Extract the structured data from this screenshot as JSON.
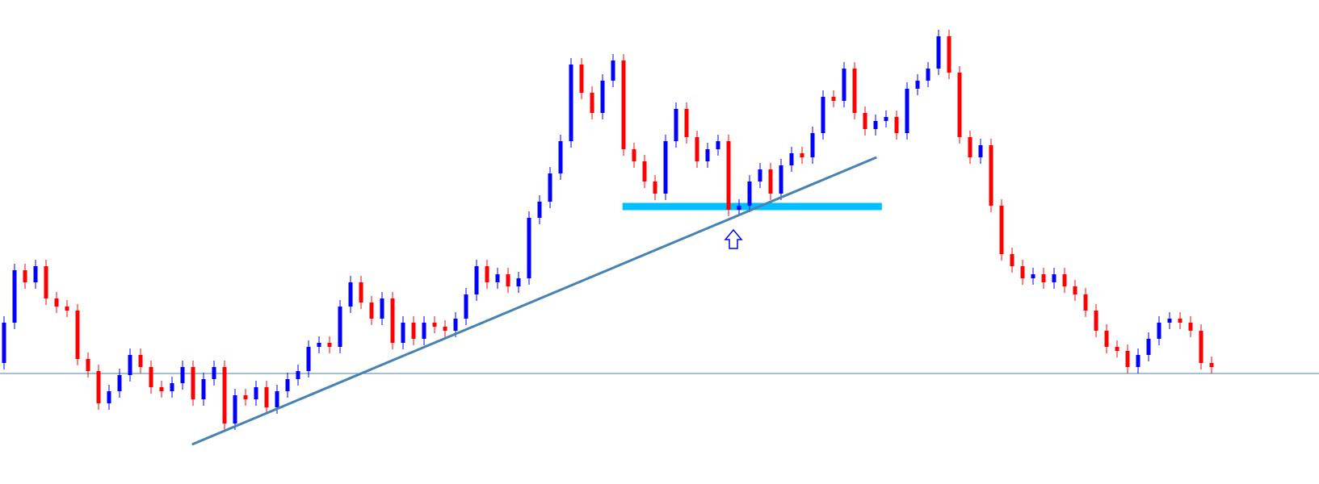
{
  "chart_data": {
    "type": "candlestick",
    "up_color": "#0000ff",
    "down_color": "#ff0000",
    "ylim": [
      0,
      600
    ],
    "open": [
      150,
      200,
      265,
      250,
      270,
      230,
      220,
      215,
      155,
      140,
      100,
      115,
      135,
      160,
      145,
      120,
      115,
      125,
      145,
      105,
      130,
      145,
      75,
      110,
      105,
      120,
      95,
      115,
      130,
      140,
      170,
      175,
      170,
      220,
      250,
      225,
      205,
      230,
      175,
      200,
      180,
      200,
      195,
      190,
      205,
      235,
      270,
      250,
      260,
      245,
      255,
      330,
      350,
      385,
      425,
      520,
      485,
      460,
      500,
      525,
      415,
      400,
      375,
      360,
      425,
      465,
      430,
      400,
      415,
      425,
      340,
      345,
      375,
      390,
      360,
      395,
      410,
      405,
      435,
      480,
      475,
      515,
      460,
      440,
      450,
      455,
      435,
      490,
      500,
      515,
      555,
      510,
      430,
      405,
      420,
      345,
      285,
      270,
      255,
      260,
      250,
      260,
      245,
      235,
      215,
      190,
      170,
      165,
      145,
      160,
      180,
      200,
      205,
      200,
      190,
      150
    ],
    "high": [
      208,
      273,
      273,
      278,
      278,
      238,
      228,
      223,
      163,
      148,
      123,
      143,
      168,
      168,
      153,
      128,
      133,
      153,
      153,
      138,
      153,
      153,
      118,
      118,
      128,
      128,
      123,
      138,
      148,
      178,
      183,
      183,
      228,
      258,
      258,
      233,
      238,
      238,
      208,
      208,
      208,
      208,
      203,
      213,
      243,
      278,
      278,
      268,
      268,
      263,
      338,
      358,
      393,
      433,
      528,
      528,
      493,
      508,
      533,
      533,
      423,
      408,
      383,
      433,
      473,
      473,
      438,
      423,
      433,
      433,
      353,
      383,
      398,
      398,
      403,
      418,
      418,
      443,
      488,
      488,
      523,
      523,
      468,
      458,
      463,
      463,
      498,
      508,
      523,
      563,
      563,
      518,
      438,
      428,
      428,
      353,
      293,
      278,
      268,
      268,
      268,
      268,
      253,
      243,
      223,
      198,
      178,
      173,
      168,
      188,
      208,
      213,
      213,
      208,
      198,
      158
    ],
    "low": [
      142,
      192,
      242,
      242,
      222,
      212,
      207,
      147,
      132,
      92,
      92,
      107,
      127,
      137,
      112,
      107,
      107,
      117,
      97,
      97,
      122,
      67,
      67,
      97,
      97,
      87,
      87,
      107,
      122,
      132,
      162,
      162,
      162,
      212,
      217,
      197,
      197,
      167,
      167,
      172,
      172,
      187,
      182,
      182,
      197,
      227,
      242,
      242,
      237,
      237,
      247,
      322,
      342,
      377,
      417,
      477,
      452,
      452,
      492,
      407,
      392,
      367,
      352,
      352,
      417,
      422,
      392,
      392,
      407,
      332,
      332,
      337,
      367,
      352,
      352,
      387,
      397,
      397,
      427,
      467,
      467,
      452,
      432,
      432,
      442,
      427,
      427,
      482,
      492,
      507,
      502,
      422,
      397,
      397,
      337,
      277,
      262,
      247,
      247,
      242,
      242,
      237,
      227,
      207,
      182,
      162,
      157,
      137,
      137,
      152,
      172,
      192,
      192,
      182,
      142,
      137
    ],
    "close": [
      200,
      265,
      250,
      270,
      230,
      220,
      215,
      155,
      140,
      100,
      115,
      135,
      160,
      145,
      120,
      115,
      125,
      145,
      105,
      130,
      145,
      75,
      110,
      105,
      120,
      95,
      115,
      130,
      140,
      170,
      175,
      170,
      220,
      250,
      225,
      205,
      230,
      175,
      200,
      180,
      200,
      195,
      190,
      205,
      235,
      270,
      250,
      260,
      245,
      255,
      330,
      350,
      385,
      425,
      520,
      485,
      460,
      500,
      525,
      415,
      400,
      375,
      360,
      425,
      465,
      430,
      400,
      415,
      425,
      340,
      345,
      375,
      390,
      360,
      395,
      410,
      405,
      435,
      480,
      475,
      515,
      460,
      440,
      450,
      455,
      435,
      490,
      500,
      515,
      555,
      510,
      430,
      405,
      420,
      345,
      285,
      270,
      255,
      260,
      250,
      260,
      245,
      235,
      215,
      190,
      170,
      165,
      145,
      160,
      180,
      200,
      205,
      200,
      190,
      150,
      145
    ],
    "hlines": [
      {
        "value": 137,
        "color": "#4682b4"
      }
    ],
    "zone": {
      "x": [
        58.9,
        83.6
      ],
      "value": 344,
      "color": "#00bfff"
    },
    "trendline": {
      "x": [
        17.9,
        83.1
      ],
      "values": [
        49,
        405
      ],
      "color": "#4682b4"
    }
  }
}
